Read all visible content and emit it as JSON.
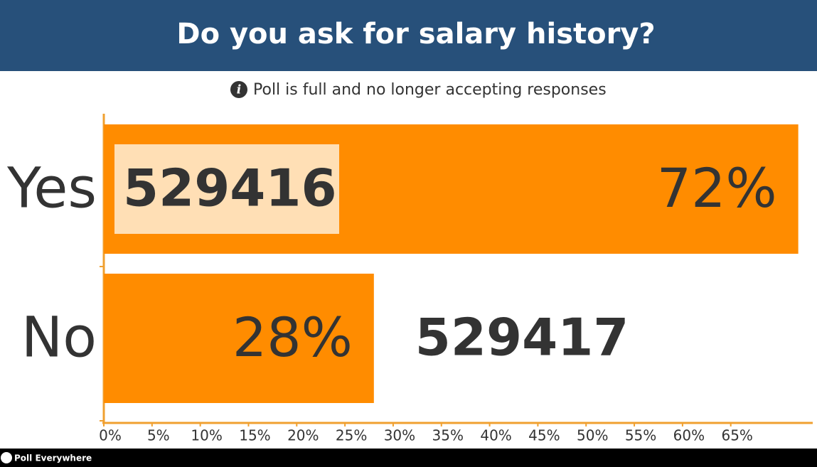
{
  "chart_data": {
    "type": "bar",
    "orientation": "horizontal",
    "title": "Do you ask for salary history?",
    "subtitle": "Poll is full and no longer accepting responses",
    "categories": [
      "Yes",
      "No"
    ],
    "values": [
      72,
      28
    ],
    "value_labels": [
      "72%",
      "28%"
    ],
    "codes": [
      "529416",
      "529417"
    ],
    "color": "#ff8c00",
    "xlim": [
      0,
      73.5
    ],
    "xticks": [
      {
        "value": 0,
        "label": "0%"
      },
      {
        "value": 5,
        "label": "5%"
      },
      {
        "value": 10,
        "label": "10%"
      },
      {
        "value": 15,
        "label": "15%"
      },
      {
        "value": 20,
        "label": "20%"
      },
      {
        "value": 25,
        "label": "25%"
      },
      {
        "value": 30,
        "label": "30%"
      },
      {
        "value": 35,
        "label": "35%"
      },
      {
        "value": 40,
        "label": "40%"
      },
      {
        "value": 45,
        "label": "45%"
      },
      {
        "value": 50,
        "label": "50%"
      },
      {
        "value": 55,
        "label": "55%"
      },
      {
        "value": 60,
        "label": "60%"
      },
      {
        "value": 65,
        "label": "65%"
      }
    ],
    "footer": "Poll Everywhere"
  }
}
